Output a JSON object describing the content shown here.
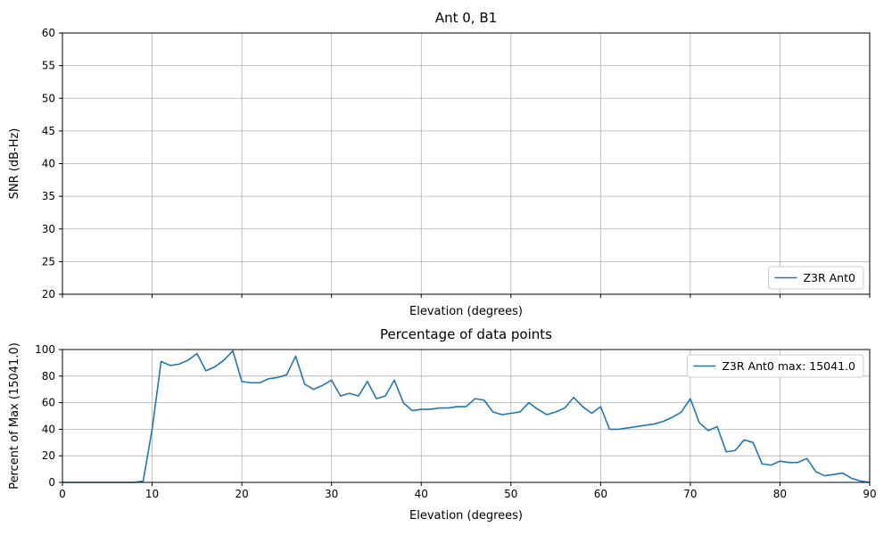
{
  "figure": {
    "background": "#ffffff",
    "grid_color": "#b0b0b0",
    "axis_color": "#000000",
    "line_color": "#1f77b4",
    "legend_edge_color": "#cccccc"
  },
  "chart_data": [
    {
      "type": "line",
      "title": "Ant 0, B1",
      "xlabel": "Elevation (degrees)",
      "ylabel": "SNR (dB-Hz)",
      "xlim": [
        0,
        90
      ],
      "ylim": [
        20,
        60
      ],
      "xticks": [
        0,
        10,
        20,
        30,
        40,
        50,
        60,
        70,
        80,
        90
      ],
      "yticks": [
        20,
        25,
        30,
        35,
        40,
        45,
        50,
        55,
        60
      ],
      "x_tick_labels_visible": false,
      "grid": true,
      "legend": {
        "position": "lower right",
        "entries": [
          {
            "label": "Z3R Ant0",
            "color": "#1f77b4"
          }
        ]
      },
      "series": []
    },
    {
      "type": "line",
      "title": "Percentage of data points",
      "xlabel": "Elevation (degrees)",
      "ylabel": "Percent of Max (15041.0)",
      "max_value": 15041.0,
      "xlim": [
        0,
        90
      ],
      "ylim": [
        0,
        100
      ],
      "xticks": [
        0,
        10,
        20,
        30,
        40,
        50,
        60,
        70,
        80,
        90
      ],
      "yticks": [
        0,
        20,
        40,
        60,
        80,
        100
      ],
      "x_tick_labels_visible": true,
      "grid": true,
      "legend": {
        "position": "upper right",
        "entries": [
          {
            "label": "Z3R Ant0 max: 15041.0",
            "color": "#1f77b4"
          }
        ]
      },
      "series": [
        {
          "name": "Z3R Ant0",
          "x": [
            0,
            1,
            2,
            3,
            4,
            5,
            6,
            7,
            8,
            9,
            10,
            11,
            12,
            13,
            14,
            15,
            16,
            17,
            18,
            19,
            20,
            21,
            22,
            23,
            24,
            25,
            26,
            27,
            28,
            29,
            30,
            31,
            32,
            33,
            34,
            35,
            36,
            37,
            38,
            39,
            40,
            41,
            42,
            43,
            44,
            45,
            46,
            47,
            48,
            49,
            50,
            51,
            52,
            53,
            54,
            55,
            56,
            57,
            58,
            59,
            60,
            61,
            62,
            63,
            64,
            65,
            66,
            67,
            68,
            69,
            70,
            71,
            72,
            73,
            74,
            75,
            76,
            77,
            78,
            79,
            80,
            81,
            82,
            83,
            84,
            85,
            86,
            87,
            88,
            89,
            90
          ],
          "y": [
            0,
            0,
            0,
            0,
            0,
            0,
            0,
            0,
            0,
            1,
            40,
            91,
            88,
            89,
            92,
            97,
            84,
            87,
            92,
            99,
            76,
            75,
            75,
            78,
            79,
            81,
            95,
            74,
            70,
            73,
            77,
            65,
            67,
            65,
            76,
            63,
            65,
            77,
            60,
            54,
            55,
            55,
            56,
            56,
            57,
            57,
            63,
            62,
            53,
            51,
            52,
            53,
            60,
            55,
            51,
            53,
            56,
            64,
            57,
            52,
            57,
            40,
            40,
            41,
            42,
            43,
            44,
            46,
            49,
            53,
            63,
            45,
            39,
            42,
            23,
            24,
            32,
            30,
            14,
            13,
            16,
            15,
            15,
            18,
            8,
            5,
            6,
            7,
            3,
            1,
            0
          ]
        }
      ]
    }
  ]
}
